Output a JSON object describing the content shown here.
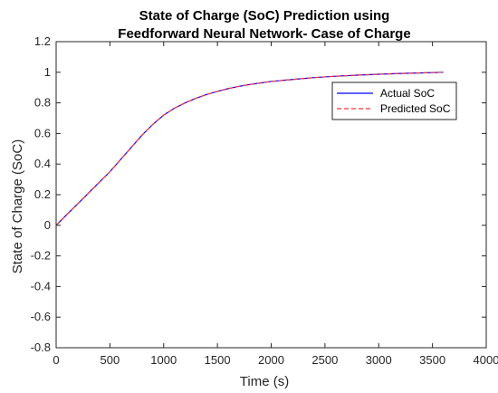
{
  "chart_data": {
    "type": "line",
    "title_line1": "State of Charge (SoC) Prediction using",
    "title_line2": "Feedforward Neural Network- Case of Charge",
    "xlabel": "Time (s)",
    "ylabel": "State of Charge (SoC)",
    "xlim": [
      0,
      4000
    ],
    "ylim": [
      -0.8,
      1.2
    ],
    "xticks": [
      0,
      500,
      1000,
      1500,
      2000,
      2500,
      3000,
      3500,
      4000
    ],
    "yticks": [
      -0.8,
      -0.6,
      -0.4,
      -0.2,
      0,
      0.2,
      0.4,
      0.6,
      0.8,
      1,
      1.2
    ],
    "xtick_labels": [
      "0",
      "500",
      "1000",
      "1500",
      "2000",
      "2500",
      "3000",
      "3500",
      "4000"
    ],
    "ytick_labels": [
      "-0.8",
      "-0.6",
      "-0.4",
      "-0.2",
      "0",
      "0.2",
      "0.4",
      "0.6",
      "0.8",
      "1",
      "1.2"
    ],
    "grid": false,
    "legend_position": "top-right",
    "series": [
      {
        "name": "Actual SoC",
        "color": "#0000ff",
        "style": "solid",
        "x": [
          0,
          100,
          200,
          300,
          400,
          500,
          600,
          700,
          800,
          900,
          1000,
          1100,
          1200,
          1300,
          1400,
          1500,
          1600,
          1700,
          1800,
          1900,
          2000,
          2200,
          2400,
          2600,
          2800,
          3000,
          3200,
          3400,
          3600
        ],
        "y": [
          0,
          0.07,
          0.14,
          0.21,
          0.28,
          0.35,
          0.43,
          0.51,
          0.59,
          0.66,
          0.72,
          0.765,
          0.8,
          0.83,
          0.855,
          0.875,
          0.893,
          0.908,
          0.92,
          0.93,
          0.94,
          0.953,
          0.965,
          0.974,
          0.981,
          0.987,
          0.992,
          0.996,
          1.0
        ]
      },
      {
        "name": "Predicted SoC",
        "color": "#ff3333",
        "style": "dashed",
        "x": [
          0,
          100,
          200,
          300,
          400,
          500,
          600,
          700,
          800,
          900,
          1000,
          1100,
          1200,
          1300,
          1400,
          1500,
          1600,
          1700,
          1800,
          1900,
          2000,
          2200,
          2400,
          2600,
          2800,
          3000,
          3200,
          3400,
          3600
        ],
        "y": [
          0,
          0.07,
          0.14,
          0.21,
          0.28,
          0.35,
          0.43,
          0.51,
          0.59,
          0.66,
          0.72,
          0.765,
          0.8,
          0.83,
          0.855,
          0.875,
          0.893,
          0.908,
          0.92,
          0.93,
          0.94,
          0.953,
          0.965,
          0.974,
          0.981,
          0.987,
          0.992,
          0.996,
          1.0
        ]
      }
    ]
  }
}
